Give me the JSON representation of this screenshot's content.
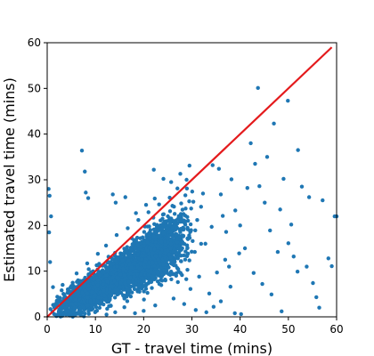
{
  "chart_data": {
    "type": "scatter",
    "title": "",
    "xlabel": "GT - travel time (mins)",
    "ylabel": "Estimated travel time (mins)",
    "xlim": [
      0,
      60
    ],
    "ylim": [
      0,
      60
    ],
    "x_ticks": [
      0,
      10,
      20,
      30,
      40,
      50,
      60
    ],
    "y_ticks": [
      0,
      10,
      20,
      30,
      40,
      50,
      60
    ],
    "grid": false,
    "legend": "none",
    "colors": {
      "points": "#1f77b4",
      "reference_line": "#e41a1c"
    },
    "reference_line": {
      "x": [
        0,
        59
      ],
      "y": [
        0,
        59
      ]
    },
    "series": [
      {
        "values": [
          [
            5.2,
            3.1
          ],
          [
            6.8,
            5.4
          ],
          [
            7.5,
            4.2
          ],
          [
            8.1,
            6.9
          ],
          [
            9.3,
            7.7
          ],
          [
            10.2,
            8.5
          ],
          [
            11.0,
            9.8
          ],
          [
            12.4,
            10.1
          ],
          [
            13.1,
            11.6
          ],
          [
            14.0,
            12.2
          ],
          [
            15.2,
            13.9
          ],
          [
            16.1,
            14.3
          ],
          [
            17.4,
            15.1
          ],
          [
            18.0,
            16.8
          ],
          [
            19.3,
            17.2
          ],
          [
            20.1,
            18.6
          ],
          [
            21.4,
            19.0
          ],
          [
            22.2,
            20.3
          ],
          [
            23.5,
            21.1
          ],
          [
            24.0,
            22.4
          ],
          [
            8.6,
            2.4
          ],
          [
            10.9,
            3.8
          ],
          [
            12.7,
            5.2
          ],
          [
            14.6,
            6.1
          ],
          [
            16.3,
            7.4
          ],
          [
            18.4,
            8.9
          ],
          [
            20.6,
            9.3
          ],
          [
            22.8,
            10.7
          ],
          [
            24.9,
            11.5
          ],
          [
            27.1,
            12.8
          ],
          [
            6.1,
            9.5
          ],
          [
            8.3,
            11.7
          ],
          [
            10.5,
            13.8
          ],
          [
            12.2,
            15.6
          ],
          [
            14.4,
            17.9
          ],
          [
            16.7,
            19.4
          ],
          [
            18.9,
            21.2
          ],
          [
            21.0,
            22.9
          ],
          [
            23.2,
            24.6
          ],
          [
            25.4,
            26.1
          ],
          [
            0.3,
            28.0
          ],
          [
            0.5,
            26.5
          ],
          [
            0.8,
            22.0
          ],
          [
            0.4,
            18.5
          ],
          [
            0.6,
            12.0
          ],
          [
            1.2,
            6.5
          ],
          [
            2.1,
            4.4
          ],
          [
            3.0,
            5.8
          ],
          [
            4.2,
            1.5
          ],
          [
            5.9,
            0.8
          ],
          [
            7.2,
            36.4
          ],
          [
            7.8,
            31.8
          ],
          [
            8.0,
            27.2
          ],
          [
            8.5,
            26.0
          ],
          [
            13.6,
            26.8
          ],
          [
            14.2,
            25.0
          ],
          [
            16.2,
            26.2
          ],
          [
            18.4,
            22.7
          ],
          [
            20.5,
            24.5
          ],
          [
            22.3,
            25.9
          ],
          [
            22.1,
            32.2
          ],
          [
            24.1,
            30.2
          ],
          [
            25.7,
            29.5
          ],
          [
            27.0,
            28.1
          ],
          [
            27.6,
            31.3
          ],
          [
            28.9,
            30.0
          ],
          [
            29.5,
            33.1
          ],
          [
            30.3,
            25.2
          ],
          [
            31.1,
            21.2
          ],
          [
            32.3,
            27.0
          ],
          [
            34.3,
            33.2
          ],
          [
            35.6,
            32.4
          ],
          [
            36.0,
            26.8
          ],
          [
            37.1,
            18.6
          ],
          [
            38.2,
            30.1
          ],
          [
            39.0,
            23.3
          ],
          [
            40.0,
            20.0
          ],
          [
            41.0,
            15.0
          ],
          [
            41.5,
            28.2
          ],
          [
            42.2,
            38.0
          ],
          [
            43.1,
            33.5
          ],
          [
            43.7,
            50.1
          ],
          [
            44.0,
            28.6
          ],
          [
            45.1,
            25.0
          ],
          [
            45.6,
            35.0
          ],
          [
            46.2,
            18.9
          ],
          [
            47.0,
            42.3
          ],
          [
            47.8,
            14.2
          ],
          [
            48.3,
            23.5
          ],
          [
            49.0,
            30.2
          ],
          [
            49.9,
            47.3
          ],
          [
            50.6,
            20.2
          ],
          [
            51.1,
            13.2
          ],
          [
            51.9,
            9.9
          ],
          [
            52.8,
            28.5
          ],
          [
            53.8,
            11.0
          ],
          [
            54.3,
            26.2
          ],
          [
            55.1,
            7.4
          ],
          [
            55.8,
            4.3
          ],
          [
            56.4,
            2.0
          ],
          [
            57.1,
            25.5
          ],
          [
            58.3,
            12.8
          ],
          [
            59.0,
            11.1
          ],
          [
            59.6,
            22.0
          ],
          [
            60.0,
            22.0
          ],
          [
            48.6,
            1.2
          ],
          [
            50.0,
            16.1
          ],
          [
            52.0,
            36.5
          ],
          [
            38.9,
            0.8
          ],
          [
            40.2,
            0.6
          ],
          [
            30.8,
            1.5
          ],
          [
            33.0,
            1.0
          ],
          [
            34.5,
            2.2
          ],
          [
            26.2,
            4.0
          ],
          [
            28.4,
            2.8
          ],
          [
            29.7,
            6.1
          ],
          [
            31.5,
            8.8
          ],
          [
            33.6,
            5.1
          ],
          [
            35.2,
            9.7
          ],
          [
            36.9,
            12.5
          ],
          [
            20.0,
            1.3
          ],
          [
            22.4,
            2.5
          ],
          [
            18.2,
            0.8
          ],
          [
            16.0,
            2.1
          ],
          [
            14.1,
            1.0
          ],
          [
            12.3,
            0.5
          ],
          [
            10.1,
            1.2
          ],
          [
            9.2,
            4.8
          ],
          [
            7.6,
            2.2
          ],
          [
            5.1,
            1.4
          ],
          [
            3.6,
            1.0
          ],
          [
            2.5,
            0.6
          ],
          [
            1.5,
            2.0
          ],
          [
            4.8,
            6.4
          ],
          [
            3.2,
            7.0
          ],
          [
            6.4,
            8.0
          ],
          [
            11.8,
            4.6
          ],
          [
            13.5,
            8.1
          ],
          [
            15.6,
            10.0
          ],
          [
            17.8,
            11.2
          ],
          [
            19.7,
            12.9
          ],
          [
            21.8,
            13.5
          ],
          [
            23.9,
            15.2
          ],
          [
            25.8,
            16.4
          ],
          [
            28.0,
            17.8
          ],
          [
            29.1,
            19.5
          ],
          [
            30.6,
            14.2
          ],
          [
            32.8,
            16.0
          ],
          [
            34.1,
            19.7
          ],
          [
            36.4,
            22.1
          ],
          [
            37.7,
            11.0
          ],
          [
            39.8,
            13.9
          ],
          [
            42.8,
            9.6
          ],
          [
            44.6,
            7.2
          ],
          [
            46.5,
            4.9
          ],
          [
            36.0,
            3.4
          ],
          [
            38.0,
            6.6
          ],
          [
            26.7,
            21.0
          ],
          [
            28.7,
            23.7
          ],
          [
            31.9,
            24.1
          ]
        ]
      }
    ]
  }
}
